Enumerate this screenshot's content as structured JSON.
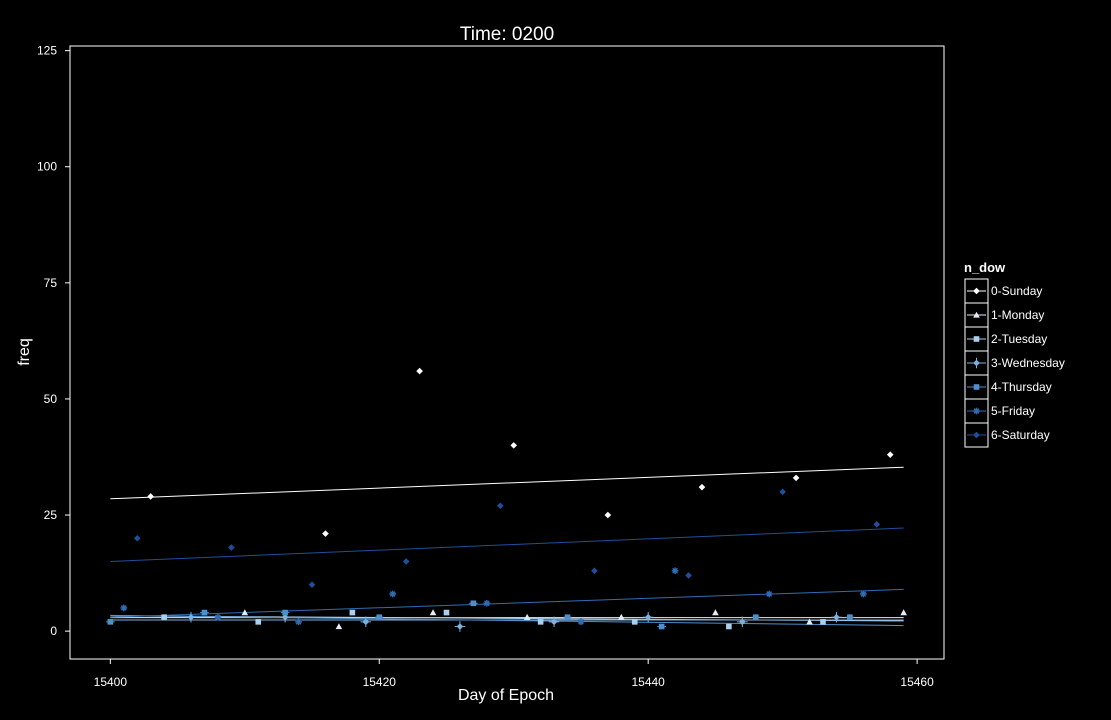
{
  "chart_data": {
    "type": "scatter",
    "title": "Time: 0200",
    "xlabel": "Day of Epoch",
    "ylabel": "freq",
    "xlim": [
      15397,
      15462
    ],
    "ylim": [
      -6,
      126
    ],
    "xticks": [
      15400,
      15420,
      15440,
      15460
    ],
    "yticks": [
      0,
      25,
      50,
      75,
      100,
      125
    ],
    "grid": false,
    "legend": {
      "title": "n_dow",
      "placement": "right"
    },
    "series": [
      {
        "name": "0-Sunday",
        "color": "#ffffff",
        "marker": "diamond",
        "points": [
          [
            15403,
            29
          ],
          [
            15416,
            21
          ],
          [
            15423,
            56
          ],
          [
            15430,
            40
          ],
          [
            15437,
            25
          ],
          [
            15444,
            31
          ],
          [
            15451,
            33
          ],
          [
            15458,
            38
          ]
        ],
        "trend": [
          [
            15400,
            28.5
          ],
          [
            15459,
            35.3
          ]
        ]
      },
      {
        "name": "1-Monday",
        "color": "#e6ecf5",
        "marker": "triangle",
        "points": [
          [
            15410,
            4
          ],
          [
            15417,
            1
          ],
          [
            15424,
            4
          ],
          [
            15431,
            3
          ],
          [
            15438,
            3
          ],
          [
            15445,
            4
          ],
          [
            15452,
            2
          ],
          [
            15459,
            4
          ]
        ],
        "trend": [
          [
            15400,
            2.9
          ],
          [
            15459,
            2.9
          ]
        ]
      },
      {
        "name": "2-Tuesday",
        "color": "#a9d0ee",
        "marker": "square",
        "points": [
          [
            15404,
            3
          ],
          [
            15411,
            2
          ],
          [
            15418,
            4
          ],
          [
            15425,
            4
          ],
          [
            15432,
            2
          ],
          [
            15439,
            2
          ],
          [
            15446,
            1
          ],
          [
            15453,
            2
          ]
        ],
        "trend": [
          [
            15400,
            3.3
          ],
          [
            15459,
            2.2
          ]
        ]
      },
      {
        "name": "3-Wednesday",
        "color": "#7cb0de",
        "marker": "diamond-plus",
        "points": [
          [
            15406,
            3
          ],
          [
            15413,
            3
          ],
          [
            15419,
            2
          ],
          [
            15426,
            1
          ],
          [
            15433,
            2
          ],
          [
            15440,
            3
          ],
          [
            15447,
            2
          ],
          [
            15454,
            3
          ]
        ],
        "trend": [
          [
            15400,
            2.4
          ],
          [
            15459,
            2.4
          ]
        ]
      },
      {
        "name": "4-Thursday",
        "color": "#4f8fcb",
        "marker": "square-cross",
        "points": [
          [
            15400,
            2
          ],
          [
            15407,
            4
          ],
          [
            15413,
            4
          ],
          [
            15420,
            3
          ],
          [
            15427,
            6
          ],
          [
            15434,
            3
          ],
          [
            15441,
            1
          ],
          [
            15448,
            3
          ],
          [
            15455,
            3
          ]
        ],
        "trend": [
          [
            15400,
            3.4
          ],
          [
            15459,
            1.2
          ]
        ]
      },
      {
        "name": "5-Friday",
        "color": "#2f6db5",
        "marker": "asterisk",
        "points": [
          [
            15401,
            5
          ],
          [
            15408,
            3
          ],
          [
            15414,
            2
          ],
          [
            15421,
            8
          ],
          [
            15428,
            6
          ],
          [
            15435,
            2
          ],
          [
            15442,
            13
          ],
          [
            15449,
            8
          ],
          [
            15456,
            8
          ]
        ],
        "trend": [
          [
            15400,
            3.0
          ],
          [
            15459,
            9.0
          ]
        ]
      },
      {
        "name": "6-Saturday",
        "color": "#1f4f9b",
        "marker": "diamond",
        "points": [
          [
            15402,
            20
          ],
          [
            15409,
            18
          ],
          [
            15415,
            10
          ],
          [
            15422,
            15
          ],
          [
            15429,
            27
          ],
          [
            15436,
            13
          ],
          [
            15443,
            12
          ],
          [
            15450,
            30
          ],
          [
            15457,
            23
          ]
        ],
        "trend": [
          [
            15400,
            15.0
          ],
          [
            15459,
            22.2
          ]
        ]
      }
    ]
  }
}
